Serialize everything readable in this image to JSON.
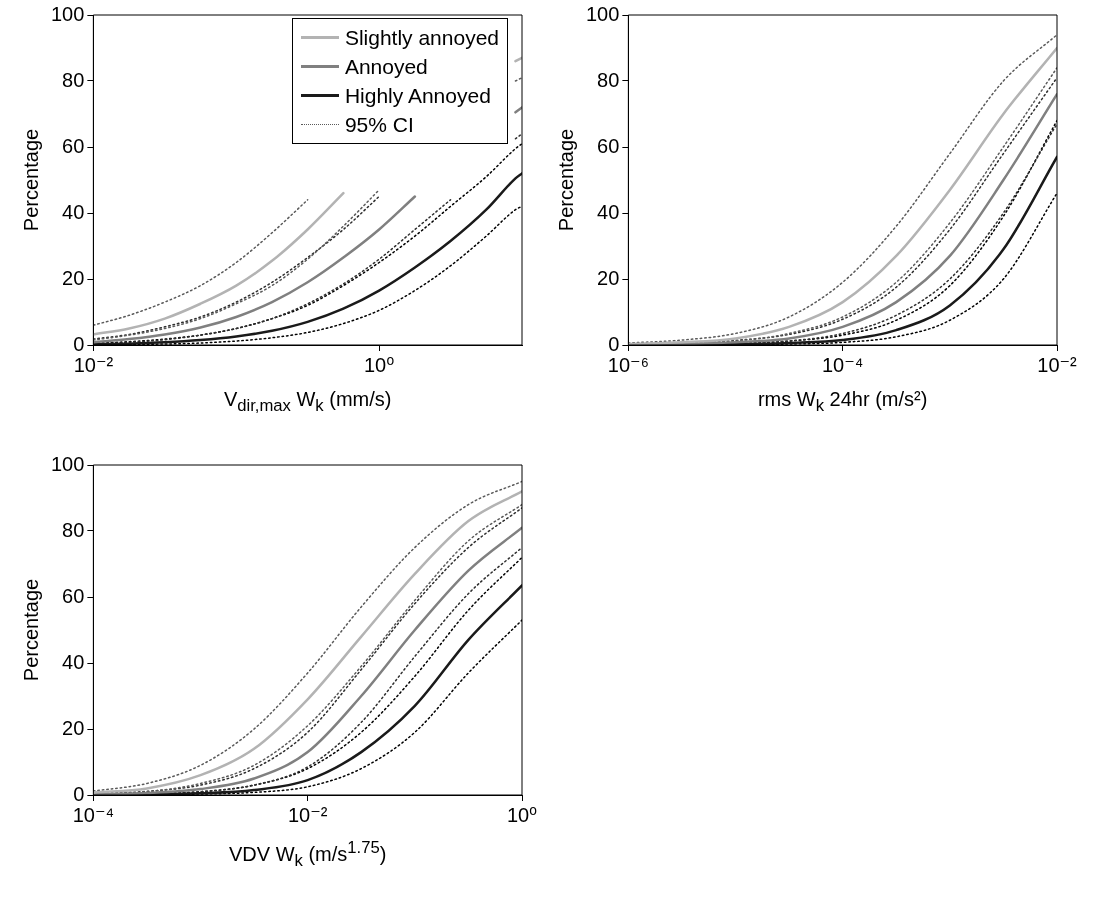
{
  "chart_data": [
    {
      "type": "line",
      "xlabel": "V$_{dir,max}$ W$_{k}$ (mm/s)",
      "ylabel": "Percentage",
      "log": "x",
      "legend": "top right",
      "marker": "none",
      "x": [
        0.01,
        0.0178,
        0.0316,
        0.0562,
        0.1,
        0.178,
        0.316,
        0.562,
        1,
        1.78,
        3.16,
        5.62,
        9,
        10
      ],
      "xlim": [
        0.01,
        10
      ],
      "xticks": [
        {
          "value": 0.01,
          "label": "10⁻²"
        },
        {
          "value": 1,
          "label": "10⁰"
        }
      ],
      "ylim": [
        0,
        100
      ],
      "yticks": [
        0,
        20,
        40,
        60,
        80,
        100
      ],
      "series": [
        {
          "name": "Slightly annoyed",
          "color": "#b3b3b3",
          "line_style": "solid",
          "values": [
            3.2,
            5,
            8,
            12.5,
            18,
            25.5,
            35,
            46,
            null,
            null,
            null,
            null,
            86,
            87
          ]
        },
        {
          "name": "Annoyed",
          "color": "#808080",
          "line_style": "solid",
          "values": [
            0.8,
            1.8,
            3.2,
            5.3,
            8.5,
            13,
            19,
            26.5,
            35,
            45,
            null,
            null,
            70.5,
            72
          ]
        },
        {
          "name": "Highly Annoyed",
          "color": "#1a1a1a",
          "line_style": "solid",
          "values": [
            0.2,
            0.4,
            0.8,
            1.5,
            2.6,
            4.3,
            7,
            11,
            16.5,
            23.5,
            31.5,
            41,
            50.5,
            52
          ]
        },
        {
          "name": "95% CI",
          "color": "#5a5a5a",
          "line_style": "dotted",
          "values": [
            6,
            9,
            13,
            18,
            25,
            34,
            44,
            null,
            null,
            null,
            null,
            null,
            null,
            null
          ]
        },
        {
          "color": "#5a5a5a",
          "line_style": "dotted",
          "values": [
            1.5,
            3,
            5,
            8,
            12.5,
            18,
            26,
            36,
            47,
            null,
            null,
            null,
            80,
            81
          ]
        },
        {
          "color": "#2e2e2e",
          "line_style": "dotted",
          "values": [
            1.8,
            3.2,
            5.5,
            8.5,
            13,
            19,
            26.5,
            35,
            45,
            null,
            null,
            null,
            null,
            null
          ]
        },
        {
          "color": "#2e2e2e",
          "line_style": "dotted",
          "values": [
            0.3,
            0.8,
            1.6,
            3,
            5,
            8,
            12.5,
            18.5,
            26,
            35,
            44,
            null,
            62.5,
            64
          ]
        },
        {
          "color": "#000000",
          "line_style": "dotted",
          "values": [
            0.5,
            1,
            1.8,
            3,
            5,
            8,
            12,
            18,
            25,
            33,
            42,
            51,
            59.5,
            61
          ]
        },
        {
          "color": "#000000",
          "line_style": "dotted",
          "values": [
            0.1,
            0.2,
            0.3,
            0.6,
            1.2,
            2.2,
            3.8,
            6.5,
            10.5,
            16.5,
            24,
            33,
            41,
            42
          ]
        }
      ]
    },
    {
      "type": "line",
      "xlabel": "rms W$_{k}$ 24hr (m/s²)",
      "ylabel": "Percentage",
      "log": "x",
      "marker": "none",
      "x": [
        1e-06,
        3.16e-06,
        1e-05,
        3.16e-05,
        0.0001,
        0.000316,
        0.001,
        0.00316,
        0.01
      ],
      "xlim": [
        1e-06,
        0.01
      ],
      "xticks": [
        {
          "value": 1e-06,
          "label": "10⁻⁶"
        },
        {
          "value": 0.0001,
          "label": "10⁻⁴"
        },
        {
          "value": 0.01,
          "label": "10⁻²"
        }
      ],
      "ylim": [
        0,
        100
      ],
      "yticks": [
        0,
        20,
        40,
        60,
        80,
        100
      ],
      "series": [
        {
          "color": "#b3b3b3",
          "line_style": "solid",
          "values": [
            0.3,
            0.8,
            2,
            5.5,
            13,
            27,
            47,
            70,
            90
          ]
        },
        {
          "color": "#808080",
          "line_style": "solid",
          "values": [
            0.1,
            0.3,
            0.8,
            2,
            5.5,
            13,
            27,
            50,
            76
          ]
        },
        {
          "color": "#1a1a1a",
          "line_style": "solid",
          "values": [
            0,
            0.1,
            0.2,
            0.6,
            1.5,
            4.5,
            12,
            29,
            57
          ]
        },
        {
          "color": "#5a5a5a",
          "line_style": "dotted",
          "values": [
            0.6,
            1.5,
            3.5,
            8.5,
            19,
            36,
            58,
            80,
            94
          ]
        },
        {
          "color": "#5a5a5a",
          "line_style": "dotted",
          "values": [
            0.1,
            0.4,
            1.2,
            3.5,
            8.5,
            19,
            37,
            60,
            84
          ]
        },
        {
          "color": "#2e2e2e",
          "line_style": "dotted",
          "values": [
            0.2,
            0.5,
            1.4,
            3.2,
            7.8,
            17.5,
            35,
            58,
            81
          ]
        },
        {
          "color": "#2e2e2e",
          "line_style": "dotted",
          "values": [
            0,
            0.1,
            0.4,
            1.2,
            3.5,
            9,
            20,
            40,
            67
          ]
        },
        {
          "color": "#000000",
          "line_style": "dotted",
          "values": [
            0,
            0.2,
            0.5,
            1.2,
            3,
            7.5,
            18,
            39,
            68
          ]
        },
        {
          "color": "#000000",
          "line_style": "dotted",
          "values": [
            0,
            0,
            0.1,
            0.3,
            0.8,
            2.5,
            7.5,
            20,
            46
          ]
        }
      ]
    },
    {
      "type": "line",
      "xlabel": "VDV W$_{k}$ (m/s$^{1.75}$)",
      "ylabel": "Percentage",
      "log": "x",
      "marker": "none",
      "x": [
        0.0001,
        0.000316,
        0.001,
        0.00316,
        0.01,
        0.0316,
        0.1,
        0.316,
        1
      ],
      "xlim": [
        0.0001,
        1
      ],
      "xticks": [
        {
          "value": 0.0001,
          "label": "10⁻⁴"
        },
        {
          "value": 0.01,
          "label": "10⁻²"
        },
        {
          "value": 1,
          "label": "10⁰"
        }
      ],
      "ylim": [
        0,
        100
      ],
      "yticks": [
        0,
        20,
        40,
        60,
        80,
        100
      ],
      "series": [
        {
          "color": "#b3b3b3",
          "line_style": "solid",
          "values": [
            0.7,
            2,
            6,
            14,
            29,
            48,
            67,
            83,
            92
          ]
        },
        {
          "color": "#808080",
          "line_style": "solid",
          "values": [
            0.2,
            0.6,
            1.8,
            5,
            13,
            30,
            50,
            68,
            81
          ]
        },
        {
          "color": "#1a1a1a",
          "line_style": "solid",
          "values": [
            0.1,
            0.2,
            0.5,
            1.5,
            4.5,
            13,
            27,
            47,
            63.5
          ]
        },
        {
          "color": "#5a5a5a",
          "line_style": "dotted",
          "values": [
            1.2,
            3.5,
            9,
            20,
            37,
            57,
            75,
            88,
            95
          ]
        },
        {
          "color": "#5a5a5a",
          "line_style": "dotted",
          "values": [
            0.3,
            1,
            3.5,
            9,
            21,
            39,
            59,
            77,
            88
          ]
        },
        {
          "color": "#2e2e2e",
          "line_style": "dotted",
          "values": [
            0.4,
            1.1,
            3,
            8,
            19,
            38,
            58,
            75,
            87
          ]
        },
        {
          "color": "#2e2e2e",
          "line_style": "dotted",
          "values": [
            0.1,
            0.3,
            1,
            3,
            8.5,
            22,
            42,
            61,
            75
          ]
        },
        {
          "color": "#000000",
          "line_style": "dotted",
          "values": [
            0.2,
            0.4,
            1,
            3,
            8,
            19,
            36,
            56,
            72
          ]
        },
        {
          "color": "#000000",
          "line_style": "dotted",
          "values": [
            0,
            0.1,
            0.3,
            0.8,
            2.5,
            8,
            19,
            37,
            53
          ]
        }
      ]
    }
  ]
}
